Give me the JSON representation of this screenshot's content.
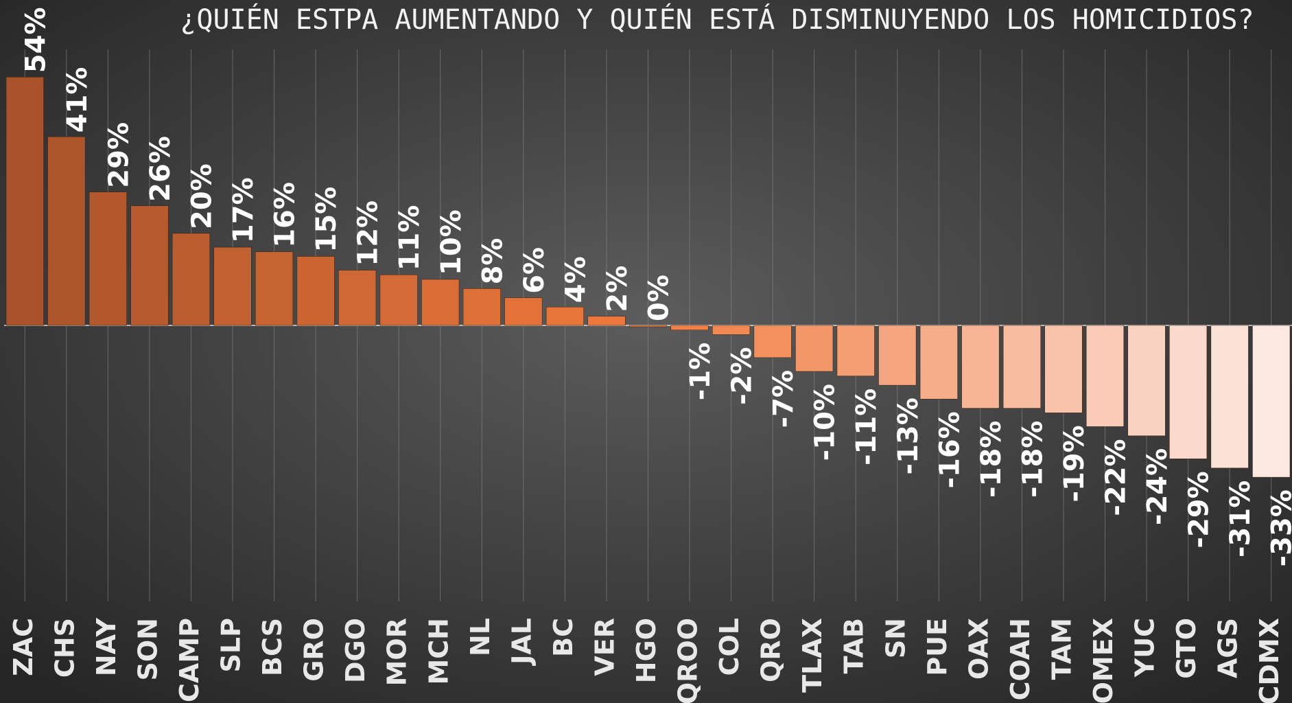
{
  "chart_data": {
    "type": "bar",
    "title": "¿QUIÉN ESTPA AUMENTANDO Y QUIÉN ESTÁ DISMINUYENDO LOS HOMICIDIOS?",
    "categories": [
      "ZAC",
      "CHS",
      "NAY",
      "SON",
      "CAMP",
      "SLP",
      "BCS",
      "GRO",
      "DGO",
      "MOR",
      "MCH",
      "NL",
      "JAL",
      "BC",
      "VER",
      "HGO",
      "QROO",
      "COL",
      "QRO",
      "TLAX",
      "TAB",
      "SN",
      "PUE",
      "OAX",
      "COAH",
      "TAM",
      "OMEX",
      "YUC",
      "GTO",
      "AGS",
      "CDMX"
    ],
    "values": [
      54,
      41,
      29,
      26,
      20,
      17,
      16,
      15,
      12,
      11,
      10,
      8,
      6,
      4,
      2,
      0,
      -1,
      -2,
      -7,
      -10,
      -11,
      -13,
      -16,
      -18,
      -18,
      -19,
      -22,
      -24,
      -29,
      -31,
      -33
    ],
    "value_labels": [
      "54%",
      "41%",
      "29%",
      "26%",
      "20%",
      "17%",
      "16%",
      "15%",
      "12%",
      "11%",
      "10%",
      "8%",
      "6%",
      "4%",
      "2%",
      "0%",
      "-1%",
      "-2%",
      "-7%",
      "-10%",
      "-11%",
      "-13%",
      "-16%",
      "-18%",
      "-18%",
      "-19%",
      "-22%",
      "-24%",
      "-29%",
      "-31%",
      "-33%"
    ],
    "colors": [
      "#a9532a",
      "#f07a3c",
      "#fde8e2"
    ],
    "ylim": [
      -60,
      60
    ]
  }
}
